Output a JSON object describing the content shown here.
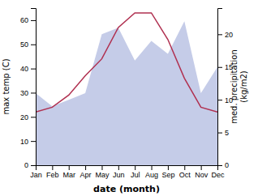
{
  "chart_data": {
    "type": "line",
    "xlabel": "date (month)",
    "ylabel": "max temp (C)",
    "y2label": "med. precipitation\n(kg/m2)",
    "categories": [
      "Jan",
      "Feb",
      "Mar",
      "Apr",
      "May",
      "Jun",
      "Jul",
      "Aug",
      "Sep",
      "Oct",
      "Nov",
      "Dec"
    ],
    "series": [
      {
        "type": "area",
        "axis": "y2",
        "color": "#c5cce8",
        "values": [
          11,
          9,
          10,
          11,
          20,
          21,
          16,
          19,
          17,
          22,
          11,
          15
        ]
      },
      {
        "type": "line",
        "color": "#b03050",
        "values": [
          22,
          24,
          29,
          37,
          44,
          57,
          63,
          63,
          52,
          36,
          24,
          22
        ]
      }
    ],
    "ylim": [
      0,
      65
    ],
    "yticks": [
      0,
      10,
      20,
      30,
      40,
      50,
      60
    ],
    "y2lim": [
      0,
      24
    ],
    "y2ticks": [
      0,
      5,
      10,
      15,
      20
    ],
    "grid": false
  }
}
